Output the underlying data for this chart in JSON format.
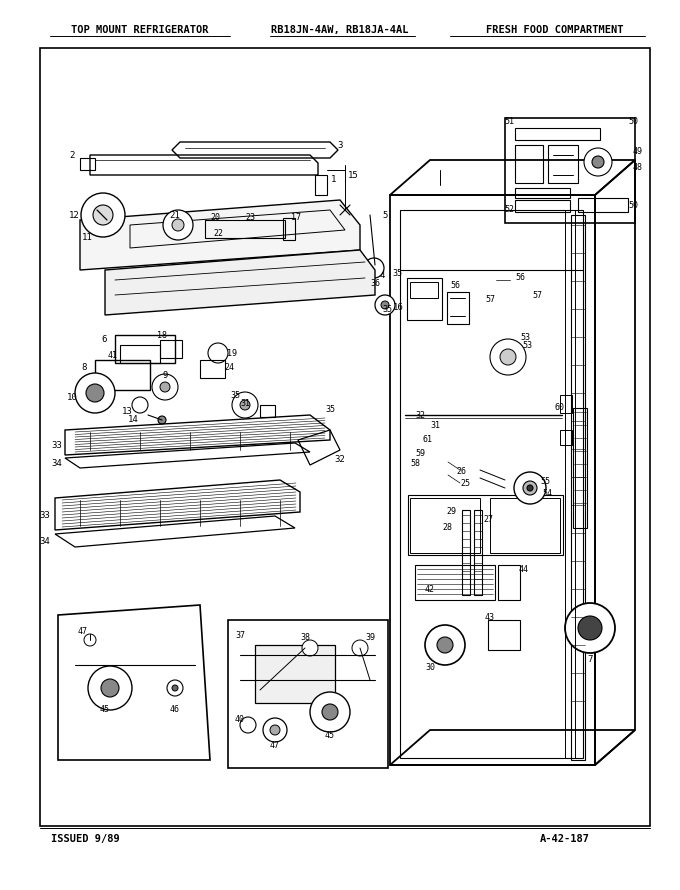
{
  "title_left": "TOP MOUNT REFRIGERATOR",
  "title_center": "RB18JN-4AW, RB18JA-4AL",
  "title_right": "FRESH FOOD COMPARTMENT",
  "footer_left": "ISSUED 9/89",
  "footer_right": "A-42-187",
  "bg_color": "#ffffff",
  "line_color": "#000000",
  "text_color": "#000000",
  "fig_width": 6.8,
  "fig_height": 8.9,
  "dpi": 100
}
